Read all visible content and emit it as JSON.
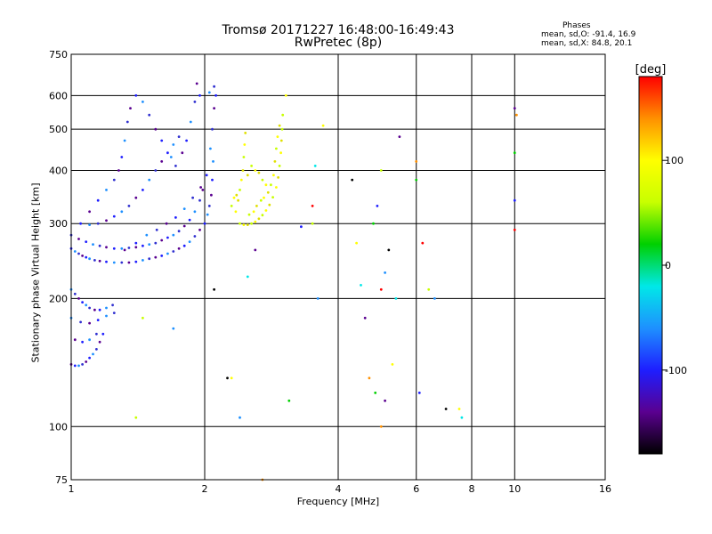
{
  "header": {
    "title": "Tromsø 20171227 16:48:00-16:49:43",
    "subtitle": "RwPretec (8p)"
  },
  "phase_info": {
    "title": "Phases",
    "o_line": "mean, sd,O: -91.4, 16.9",
    "x_line": "mean, sd,X:  84.8, 20.1"
  },
  "colorbar": {
    "label": "[deg]",
    "ticks": [
      "100",
      "0",
      "-100"
    ],
    "tick_values": [
      100,
      0,
      -100
    ],
    "range": [
      -180,
      180
    ],
    "colors": [
      "#000000",
      "#5a0090",
      "#1e1eff",
      "#1e90ff",
      "#00e8e8",
      "#00d000",
      "#c8ff00",
      "#ffff00",
      "#ff9000",
      "#ff0000"
    ]
  },
  "chart_data": {
    "type": "scatter",
    "title": "Tromsø 20171227 16:48:00-16:49:43",
    "subtitle": "RwPretec (8p)",
    "xlabel": "Frequency [MHz]",
    "ylabel": "Stationary phase Virtual Height [km]",
    "x_scale": "log",
    "y_scale": "log",
    "xlim": [
      1,
      16
    ],
    "ylim": [
      75,
      750
    ],
    "x_ticks": [
      1,
      2,
      4,
      6,
      8,
      10,
      16
    ],
    "x_tick_labels": [
      "1",
      "2",
      "4",
      "6",
      "8",
      "10",
      "16"
    ],
    "y_ticks": [
      75,
      100,
      200,
      300,
      400,
      500,
      600,
      750
    ],
    "y_tick_labels": [
      "75",
      "100",
      "200",
      "300",
      "400",
      "500",
      "600",
      "750"
    ],
    "grid": true,
    "series": [
      {
        "values": [
          [
            1.0,
            262
          ],
          [
            1.02,
            258
          ],
          [
            1.04,
            255
          ],
          [
            1.06,
            252
          ],
          [
            1.08,
            250
          ],
          [
            1.1,
            248
          ],
          [
            1.13,
            246
          ],
          [
            1.16,
            245
          ],
          [
            1.2,
            244
          ],
          [
            1.25,
            243
          ],
          [
            1.3,
            243
          ],
          [
            1.35,
            243
          ],
          [
            1.4,
            244
          ],
          [
            1.45,
            246
          ],
          [
            1.5,
            248
          ],
          [
            1.55,
            250
          ],
          [
            1.6,
            252
          ],
          [
            1.65,
            255
          ],
          [
            1.7,
            258
          ],
          [
            1.75,
            262
          ],
          [
            1.8,
            266
          ],
          [
            1.85,
            272
          ],
          [
            1.9,
            280
          ],
          [
            1.95,
            290
          ],
          [
            2.0,
            300
          ],
          [
            2.03,
            315
          ],
          [
            2.05,
            330
          ],
          [
            2.07,
            350
          ],
          [
            2.08,
            380
          ],
          [
            2.09,
            420
          ],
          [
            1.0,
            282
          ],
          [
            1.04,
            276
          ],
          [
            1.08,
            272
          ],
          [
            1.12,
            268
          ],
          [
            1.16,
            266
          ],
          [
            1.2,
            264
          ],
          [
            1.25,
            262
          ],
          [
            1.3,
            262
          ],
          [
            1.35,
            263
          ],
          [
            1.4,
            264
          ],
          [
            1.45,
            266
          ],
          [
            1.5,
            268
          ],
          [
            1.55,
            270
          ],
          [
            1.6,
            274
          ],
          [
            1.65,
            278
          ],
          [
            1.7,
            282
          ],
          [
            1.75,
            288
          ],
          [
            1.8,
            296
          ],
          [
            1.85,
            306
          ],
          [
            1.9,
            320
          ],
          [
            1.95,
            340
          ],
          [
            1.98,
            360
          ],
          [
            1.05,
            300
          ],
          [
            1.1,
            298
          ],
          [
            1.15,
            300
          ],
          [
            1.2,
            305
          ],
          [
            1.25,
            312
          ],
          [
            1.3,
            320
          ],
          [
            1.35,
            330
          ],
          [
            1.4,
            345
          ],
          [
            1.45,
            360
          ],
          [
            1.5,
            380
          ],
          [
            1.55,
            400
          ],
          [
            1.6,
            420
          ],
          [
            1.65,
            440
          ],
          [
            1.7,
            460
          ],
          [
            1.75,
            480
          ],
          [
            1.1,
            320
          ],
          [
            1.15,
            340
          ],
          [
            1.2,
            360
          ],
          [
            1.25,
            380
          ],
          [
            1.28,
            400
          ],
          [
            1.3,
            430
          ],
          [
            1.32,
            470
          ],
          [
            1.34,
            520
          ],
          [
            1.36,
            560
          ],
          [
            1.4,
            600
          ],
          [
            1.45,
            580
          ],
          [
            1.5,
            540
          ],
          [
            1.55,
            500
          ],
          [
            1.6,
            470
          ],
          [
            1.68,
            430
          ],
          [
            1.72,
            410
          ],
          [
            1.78,
            440
          ],
          [
            1.82,
            470
          ],
          [
            1.86,
            520
          ],
          [
            1.9,
            580
          ],
          [
            1.92,
            640
          ],
          [
            1.95,
            600
          ],
          [
            2.05,
            610
          ],
          [
            2.1,
            630
          ],
          [
            1.32,
            260
          ],
          [
            1.4,
            270
          ],
          [
            1.48,
            282
          ],
          [
            1.56,
            290
          ],
          [
            1.64,
            300
          ],
          [
            1.72,
            310
          ],
          [
            1.8,
            325
          ],
          [
            1.88,
            345
          ],
          [
            1.96,
            365
          ],
          [
            2.02,
            390
          ],
          [
            2.06,
            450
          ],
          [
            2.08,
            500
          ],
          [
            2.1,
            560
          ],
          [
            2.12,
            600
          ],
          [
            1.0,
            210
          ],
          [
            1.02,
            205
          ],
          [
            1.04,
            200
          ],
          [
            1.06,
            196
          ],
          [
            1.08,
            193
          ],
          [
            1.1,
            190
          ],
          [
            1.13,
            188
          ],
          [
            1.16,
            188
          ],
          [
            1.2,
            190
          ],
          [
            1.24,
            193
          ],
          [
            1.0,
            140
          ],
          [
            1.02,
            139
          ],
          [
            1.04,
            139
          ],
          [
            1.06,
            140
          ],
          [
            1.08,
            142
          ],
          [
            1.1,
            145
          ],
          [
            1.12,
            148
          ],
          [
            1.14,
            152
          ],
          [
            1.16,
            158
          ],
          [
            1.18,
            165
          ],
          [
            1.0,
            180
          ],
          [
            1.05,
            176
          ],
          [
            1.1,
            175
          ],
          [
            1.15,
            178
          ],
          [
            1.2,
            182
          ],
          [
            1.25,
            185
          ],
          [
            1.02,
            160
          ],
          [
            1.06,
            158
          ],
          [
            1.1,
            160
          ],
          [
            1.14,
            165
          ]
        ]
      },
      {
        "values": [
          [
            2.4,
            300
          ],
          [
            2.45,
            298
          ],
          [
            2.5,
            298
          ],
          [
            2.55,
            300
          ],
          [
            2.6,
            303
          ],
          [
            2.65,
            308
          ],
          [
            2.7,
            314
          ],
          [
            2.75,
            322
          ],
          [
            2.8,
            332
          ],
          [
            2.85,
            346
          ],
          [
            2.9,
            365
          ],
          [
            2.93,
            385
          ],
          [
            2.95,
            410
          ],
          [
            2.97,
            440
          ],
          [
            2.98,
            470
          ],
          [
            2.99,
            500
          ],
          [
            2.35,
            320
          ],
          [
            2.38,
            340
          ],
          [
            2.4,
            360
          ],
          [
            2.42,
            380
          ],
          [
            2.44,
            400
          ],
          [
            2.45,
            430
          ],
          [
            2.46,
            460
          ],
          [
            2.47,
            490
          ],
          [
            2.3,
            330
          ],
          [
            2.33,
            345
          ],
          [
            2.36,
            350
          ],
          [
            2.52,
            315
          ],
          [
            2.58,
            320
          ],
          [
            2.62,
            330
          ],
          [
            2.68,
            340
          ],
          [
            2.72,
            345
          ],
          [
            2.78,
            355
          ],
          [
            2.82,
            370
          ],
          [
            2.86,
            390
          ],
          [
            2.88,
            420
          ],
          [
            2.9,
            450
          ],
          [
            2.92,
            480
          ],
          [
            2.95,
            510
          ],
          [
            3.0,
            540
          ],
          [
            3.05,
            600
          ],
          [
            2.5,
            390
          ],
          [
            2.55,
            410
          ],
          [
            2.6,
            400
          ],
          [
            2.65,
            395
          ],
          [
            2.7,
            380
          ],
          [
            2.75,
            370
          ]
        ]
      },
      {
        "values": [
          [
            1.45,
            180
          ],
          [
            1.7,
            170
          ],
          [
            2.1,
            210
          ],
          [
            2.3,
            130
          ],
          [
            2.5,
            225
          ],
          [
            2.6,
            260
          ],
          [
            2.7,
            75
          ],
          [
            3.1,
            115
          ],
          [
            3.3,
            295
          ],
          [
            3.5,
            330
          ],
          [
            3.5,
            300
          ],
          [
            3.6,
            200
          ],
          [
            4.3,
            380
          ],
          [
            4.4,
            270
          ],
          [
            4.5,
            215
          ],
          [
            4.6,
            180
          ],
          [
            4.7,
            130
          ],
          [
            4.8,
            300
          ],
          [
            4.9,
            330
          ],
          [
            5.0,
            210
          ],
          [
            5.0,
            400
          ],
          [
            5.1,
            230
          ],
          [
            5.2,
            260
          ],
          [
            5.3,
            140
          ],
          [
            5.4,
            200
          ],
          [
            5.5,
            480
          ],
          [
            6.0,
            420
          ],
          [
            6.0,
            380
          ],
          [
            6.1,
            120
          ],
          [
            6.2,
            270
          ],
          [
            6.4,
            210
          ],
          [
            6.6,
            200
          ],
          [
            7.0,
            110
          ],
          [
            7.5,
            110
          ],
          [
            7.6,
            105
          ],
          [
            10.0,
            560
          ],
          [
            10.1,
            540
          ],
          [
            10.0,
            440
          ],
          [
            10.0,
            340
          ],
          [
            10.0,
            290
          ],
          [
            1.4,
            105
          ],
          [
            2.4,
            105
          ],
          [
            2.25,
            130
          ],
          [
            3.7,
            510
          ],
          [
            3.55,
            410
          ],
          [
            5.1,
            115
          ],
          [
            5.0,
            100
          ],
          [
            4.85,
            120
          ]
        ]
      }
    ]
  }
}
